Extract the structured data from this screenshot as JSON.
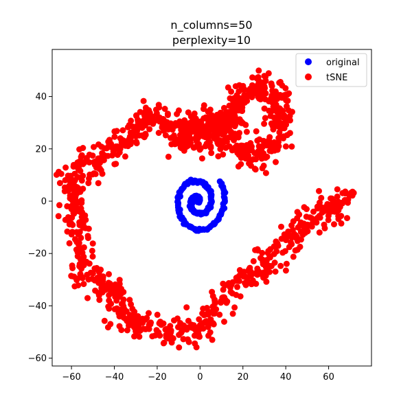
{
  "chart_data": {
    "type": "scatter",
    "title_lines": [
      "n_columns=50",
      "perplexity=10"
    ],
    "xlabel": "",
    "ylabel": "",
    "xlim": [
      -69,
      80
    ],
    "ylim": [
      -63,
      58
    ],
    "xticks": [
      -60,
      -40,
      -20,
      0,
      20,
      40,
      60
    ],
    "yticks": [
      -60,
      -40,
      -20,
      0,
      20,
      40
    ],
    "grid": false,
    "legend_position": "top-right",
    "series": [
      {
        "name": "original",
        "color": "#0000ff",
        "marker": "circle",
        "shape": "spiral",
        "spiral": {
          "center": [
            -1,
            0
          ],
          "start_radius": 0,
          "end_radius": 13,
          "turns": 2.1,
          "points": 220
        }
      },
      {
        "name": "tSNE",
        "color": "#ff0000",
        "marker": "circle",
        "shape": "band",
        "band_path": [
          [
            -62,
            6
          ],
          [
            -58,
            10
          ],
          [
            -52,
            14
          ],
          [
            -45,
            18
          ],
          [
            -38,
            22
          ],
          [
            -30,
            28
          ],
          [
            -22,
            32
          ],
          [
            -14,
            28
          ],
          [
            -5,
            24
          ],
          [
            5,
            26
          ],
          [
            15,
            32
          ],
          [
            22,
            40
          ],
          [
            30,
            44
          ],
          [
            36,
            40
          ],
          [
            38,
            28
          ],
          [
            34,
            20
          ],
          [
            25,
            18
          ],
          [
            18,
            20
          ],
          [
            10,
            28
          ],
          [
            0,
            30
          ],
          [
            -8,
            24
          ]
        ],
        "band_path_2": [
          [
            -62,
            6
          ],
          [
            -58,
            0
          ],
          [
            -57,
            -8
          ],
          [
            -57,
            -18
          ],
          [
            -55,
            -26
          ],
          [
            -48,
            -32
          ],
          [
            -40,
            -38
          ],
          [
            -35,
            -44
          ],
          [
            -28,
            -47
          ],
          [
            -18,
            -50
          ],
          [
            -8,
            -52
          ],
          [
            -2,
            -50
          ],
          [
            5,
            -44
          ],
          [
            12,
            -36
          ],
          [
            20,
            -30
          ],
          [
            28,
            -25
          ],
          [
            35,
            -20
          ],
          [
            42,
            -14
          ],
          [
            50,
            -8
          ],
          [
            58,
            -4
          ],
          [
            66,
            0
          ],
          [
            71,
            1
          ]
        ],
        "spread": 3.2,
        "points": 1300
      }
    ]
  }
}
